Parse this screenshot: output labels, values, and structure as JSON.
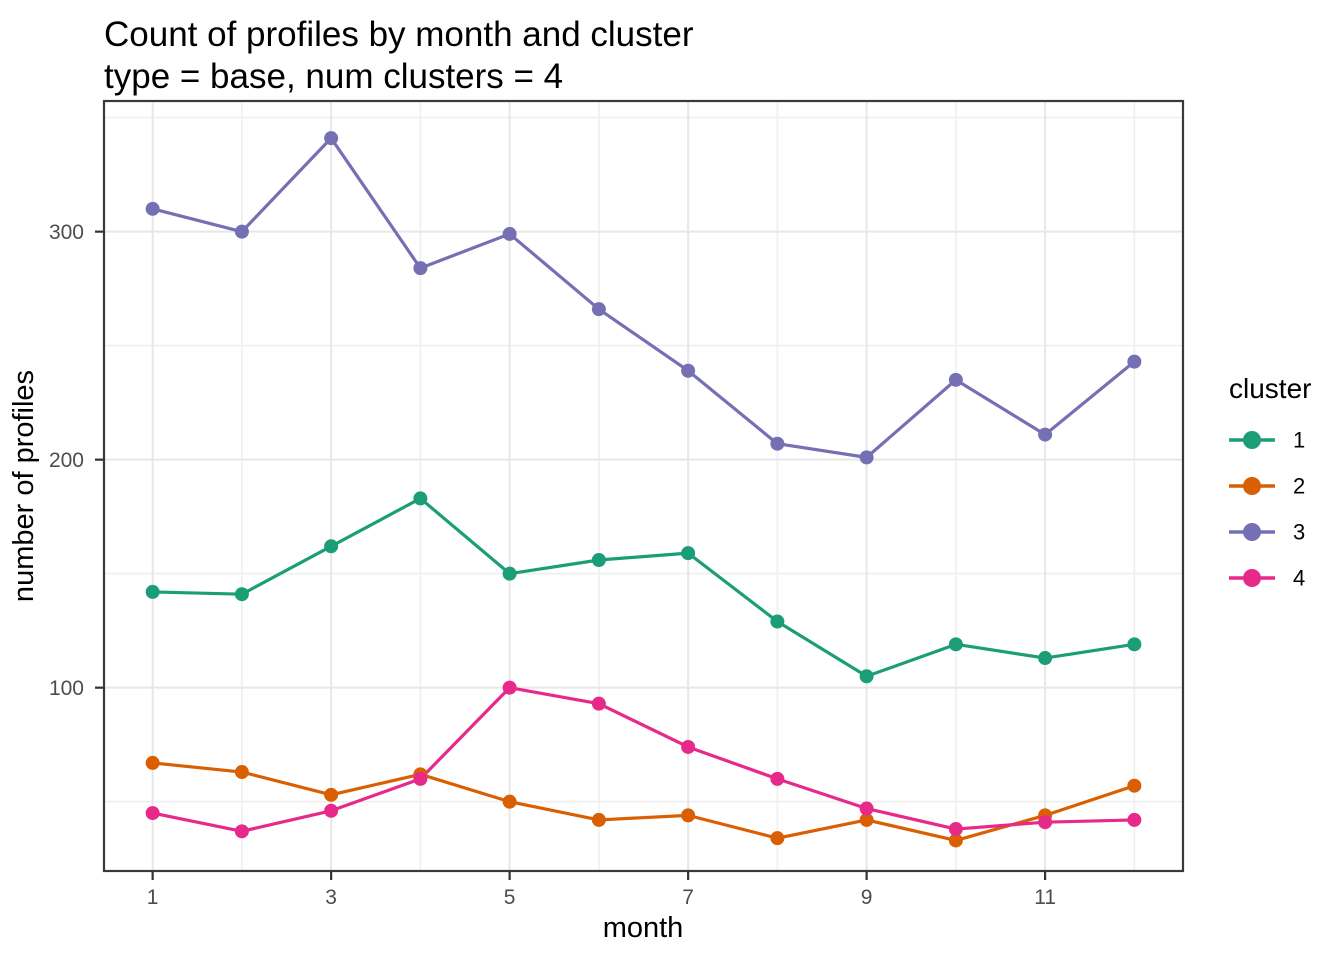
{
  "chart_data": {
    "type": "line",
    "title": "Count of profiles by month and cluster",
    "subtitle": "type = base, num clusters = 4",
    "xlabel": "month",
    "ylabel": "number of profiles",
    "x": [
      1,
      2,
      3,
      4,
      5,
      6,
      7,
      8,
      9,
      10,
      11,
      12
    ],
    "series": [
      {
        "name": "1",
        "color": "#1B9E77",
        "values": [
          142,
          141,
          162,
          183,
          150,
          156,
          159,
          129,
          105,
          119,
          113,
          119
        ]
      },
      {
        "name": "2",
        "color": "#D95F02",
        "values": [
          67,
          63,
          53,
          62,
          50,
          42,
          44,
          34,
          42,
          33,
          44,
          57
        ]
      },
      {
        "name": "3",
        "color": "#7570B3",
        "values": [
          310,
          300,
          341,
          284,
          299,
          266,
          239,
          207,
          201,
          235,
          211,
          243
        ]
      },
      {
        "name": "4",
        "color": "#E7298A",
        "values": [
          45,
          37,
          46,
          60,
          100,
          93,
          74,
          60,
          47,
          38,
          41,
          42
        ]
      }
    ],
    "legend": {
      "title": "cluster",
      "position": "right",
      "entries": [
        "1",
        "2",
        "3",
        "4"
      ]
    },
    "axes": {
      "x_ticks": [
        1,
        3,
        5,
        7,
        9,
        11
      ],
      "x_minor": [
        2,
        4,
        6,
        8,
        10,
        12
      ],
      "y_ticks": [
        100,
        200,
        300
      ],
      "y_minor": [
        50,
        150,
        250,
        350
      ],
      "x_domain": [
        0.455,
        12.545
      ],
      "y_domain": [
        19.6,
        357.3
      ],
      "grid": true
    },
    "theme": {
      "background": "#FFFFFF",
      "grid_major": "#E7E7E7",
      "grid_minor": "#F0F0F0",
      "panel_border": "#3A3A3A",
      "tick_color": "#333333",
      "tick_label_color": "#4D4D4D",
      "text_color": "#000000"
    }
  }
}
